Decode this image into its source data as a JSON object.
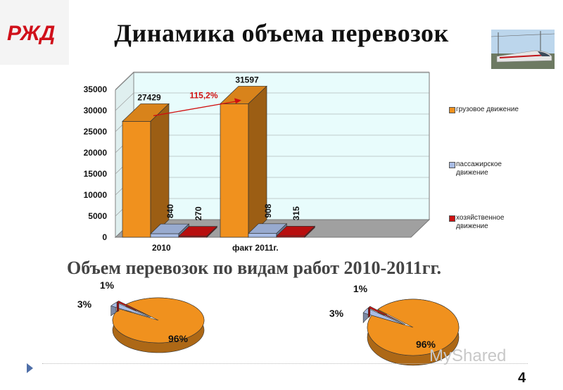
{
  "header": {
    "logo_text": "РЖД",
    "title": "Динамика объема перевозок",
    "photo": "high-speed-train-photo"
  },
  "subtitle": "Объем перевозок по видам работ 2010-2011гг.",
  "colors": {
    "cargo": "#f0911e",
    "passenger": "#a9bde6",
    "service": "#cc1111",
    "plot_bg": "#e8fcfc",
    "floor": "#a0a0a0"
  },
  "chart_data": [
    {
      "type": "bar",
      "categories": [
        "2010",
        "факт 2011г."
      ],
      "series": [
        {
          "name": "грузовое движение",
          "values": [
            27429,
            31597
          ],
          "labels": [
            "27429",
            "31597"
          ]
        },
        {
          "name": "пассажирское движение",
          "values": [
            840,
            908
          ],
          "labels": [
            "840",
            "908"
          ]
        },
        {
          "name": "хозяйственное движение",
          "values": [
            270,
            315
          ],
          "labels": [
            "270",
            "315"
          ]
        }
      ],
      "yticks": [
        "0",
        "5000",
        "10000",
        "15000",
        "20000",
        "25000",
        "30000",
        "35000"
      ],
      "ylim": [
        0,
        35000
      ],
      "annotation": "115,2%",
      "legend_position": "right",
      "grid": true
    },
    {
      "type": "pie",
      "year": "2010",
      "slices": [
        {
          "name": "грузовое движение",
          "value": 96,
          "label": "96%"
        },
        {
          "name": "пассажирское движение",
          "value": 3,
          "label": "3%"
        },
        {
          "name": "хозяйственное движение",
          "value": 1,
          "label": "1%"
        }
      ]
    },
    {
      "type": "pie",
      "year": "факт 2011г.",
      "slices": [
        {
          "name": "грузовое движение",
          "value": 96,
          "label": "96%"
        },
        {
          "name": "пассажирское движение",
          "value": 3,
          "label": "3%"
        },
        {
          "name": "хозяйственное движение",
          "value": 1,
          "label": "1%"
        }
      ]
    }
  ],
  "footer": {
    "watermark": "MyShared",
    "page_number": "4"
  }
}
